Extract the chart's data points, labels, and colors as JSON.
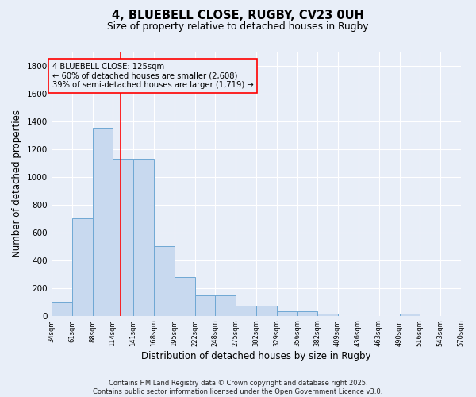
{
  "title1": "4, BLUEBELL CLOSE, RUGBY, CV23 0UH",
  "title2": "Size of property relative to detached houses in Rugby",
  "xlabel": "Distribution of detached houses by size in Rugby",
  "ylabel": "Number of detached properties",
  "bin_edges": [
    34,
    61,
    88,
    114,
    141,
    168,
    195,
    222,
    248,
    275,
    302,
    329,
    356,
    382,
    409,
    436,
    463,
    490,
    516,
    543,
    570
  ],
  "bar_heights": [
    100,
    700,
    1350,
    1130,
    1130,
    500,
    280,
    145,
    145,
    70,
    70,
    30,
    30,
    15,
    0,
    0,
    0,
    15,
    0,
    0
  ],
  "bar_color": "#c8d9ef",
  "bar_edge_color": "#6fa8d4",
  "vline_x": 125,
  "vline_color": "red",
  "annotation_text": "4 BLUEBELL CLOSE: 125sqm\n← 60% of detached houses are smaller (2,608)\n39% of semi-detached houses are larger (1,719) →",
  "annotation_box_color": "red",
  "ylim": [
    0,
    1900
  ],
  "background_color": "#e8eef8",
  "grid_color": "#ffffff",
  "yticks": [
    0,
    200,
    400,
    600,
    800,
    1000,
    1200,
    1400,
    1600,
    1800
  ],
  "footer": "Contains HM Land Registry data © Crown copyright and database right 2025.\nContains public sector information licensed under the Open Government Licence v3.0."
}
